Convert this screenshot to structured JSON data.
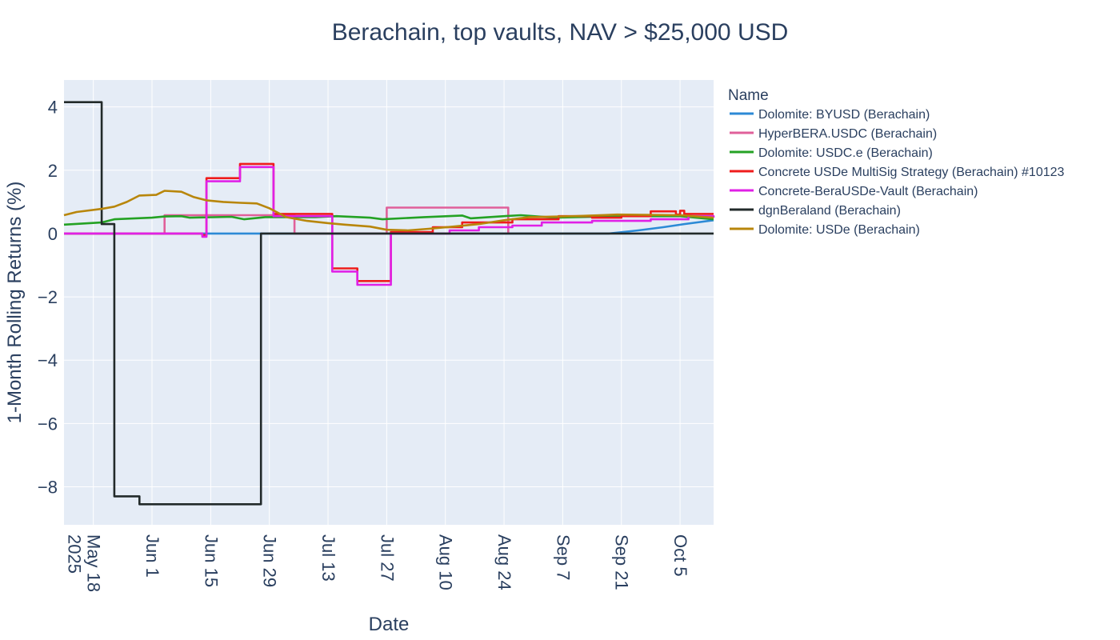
{
  "chart_data": {
    "type": "line",
    "title": "Berachain, top vaults, NAV > $25,000 USD",
    "xlabel": "Date",
    "ylabel": "1-Month Rolling Returns (%)",
    "xlim": [
      "2025-05-11",
      "2025-10-13"
    ],
    "ylim": [
      -9.2,
      4.85
    ],
    "y_ticks": [
      4,
      2,
      0,
      -2,
      -4,
      -6,
      -8
    ],
    "y_tick_labels": [
      "4",
      "2",
      "0",
      "−2",
      "−4",
      "−6",
      "−8"
    ],
    "x_ticks": [
      {
        "date": "2025-05-18",
        "label": "May 18",
        "label2": "2025"
      },
      {
        "date": "2025-06-01",
        "label": "Jun 1"
      },
      {
        "date": "2025-06-15",
        "label": "Jun 15"
      },
      {
        "date": "2025-06-29",
        "label": "Jun 29"
      },
      {
        "date": "2025-07-13",
        "label": "Jul 13"
      },
      {
        "date": "2025-07-27",
        "label": "Jul 27"
      },
      {
        "date": "2025-08-10",
        "label": "Aug 10"
      },
      {
        "date": "2025-08-24",
        "label": "Aug 24"
      },
      {
        "date": "2025-09-07",
        "label": "Sep 7"
      },
      {
        "date": "2025-09-21",
        "label": "Sep 21"
      },
      {
        "date": "2025-10-05",
        "label": "Oct 5"
      }
    ],
    "legend_title": "Name",
    "legend_position": "right",
    "grid": true,
    "series": [
      {
        "name": "Dolomite: BYUSD (Berachain)",
        "color": "#2c8ad6",
        "step": false,
        "points": [
          [
            "2025-05-11",
            0
          ],
          [
            "2025-09-18",
            0
          ],
          [
            "2025-09-25",
            0.1
          ],
          [
            "2025-10-01",
            0.2
          ],
          [
            "2025-10-06",
            0.3
          ],
          [
            "2025-10-13",
            0.42
          ]
        ]
      },
      {
        "name": "HyperBERA.USDC (Berachain)",
        "color": "#e0609a",
        "step": true,
        "points": [
          [
            "2025-06-03",
            0
          ],
          [
            "2025-06-04",
            0.58
          ],
          [
            "2025-07-04",
            0.58
          ],
          [
            "2025-07-05",
            0
          ],
          [
            "2025-07-26",
            0
          ],
          [
            "2025-07-27",
            0.82
          ],
          [
            "2025-08-24",
            0.82
          ],
          [
            "2025-08-25",
            0
          ]
        ]
      },
      {
        "name": "Dolomite: USDC.e (Berachain)",
        "color": "#24a224",
        "step": false,
        "points": [
          [
            "2025-05-11",
            0.28
          ],
          [
            "2025-05-20",
            0.35
          ],
          [
            "2025-05-23",
            0.45
          ],
          [
            "2025-06-01",
            0.5
          ],
          [
            "2025-06-04",
            0.54
          ],
          [
            "2025-06-08",
            0.55
          ],
          [
            "2025-06-10",
            0.5
          ],
          [
            "2025-06-20",
            0.53
          ],
          [
            "2025-06-23",
            0.45
          ],
          [
            "2025-06-28",
            0.52
          ],
          [
            "2025-07-10",
            0.52
          ],
          [
            "2025-07-15",
            0.55
          ],
          [
            "2025-07-23",
            0.5
          ],
          [
            "2025-07-26",
            0.45
          ],
          [
            "2025-08-05",
            0.52
          ],
          [
            "2025-08-14",
            0.57
          ],
          [
            "2025-08-16",
            0.48
          ],
          [
            "2025-08-24",
            0.55
          ],
          [
            "2025-08-28",
            0.58
          ],
          [
            "2025-09-05",
            0.5
          ],
          [
            "2025-09-20",
            0.55
          ],
          [
            "2025-10-05",
            0.55
          ],
          [
            "2025-10-13",
            0.45
          ]
        ]
      },
      {
        "name": "Concrete USDe MultiSig Strategy (Berachain) #10123",
        "color": "#ef1c1c",
        "step": true,
        "points": [
          [
            "2025-05-11",
            0
          ],
          [
            "2025-06-13",
            -0.05
          ],
          [
            "2025-06-14",
            1.75
          ],
          [
            "2025-06-21",
            1.75
          ],
          [
            "2025-06-22",
            2.2
          ],
          [
            "2025-06-29",
            2.2
          ],
          [
            "2025-06-30",
            0.62
          ],
          [
            "2025-07-13",
            0.62
          ],
          [
            "2025-07-14",
            -1.1
          ],
          [
            "2025-07-19",
            -1.1
          ],
          [
            "2025-07-20",
            -1.5
          ],
          [
            "2025-07-27",
            -1.5
          ],
          [
            "2025-07-28",
            0.05
          ],
          [
            "2025-08-06",
            0.05
          ],
          [
            "2025-08-07",
            0.2
          ],
          [
            "2025-08-13",
            0.2
          ],
          [
            "2025-08-14",
            0.35
          ],
          [
            "2025-08-25",
            0.35
          ],
          [
            "2025-08-26",
            0.45
          ],
          [
            "2025-09-05",
            0.45
          ],
          [
            "2025-09-06",
            0.55
          ],
          [
            "2025-09-13",
            0.55
          ],
          [
            "2025-09-14",
            0.5
          ],
          [
            "2025-09-20",
            0.5
          ],
          [
            "2025-09-21",
            0.55
          ],
          [
            "2025-09-27",
            0.55
          ],
          [
            "2025-09-28",
            0.7
          ],
          [
            "2025-10-04",
            0.6
          ],
          [
            "2025-10-05",
            0.72
          ],
          [
            "2025-10-06",
            0.62
          ],
          [
            "2025-10-13",
            0.62
          ]
        ]
      },
      {
        "name": "Concrete-BeraUSDe-Vault (Berachain)",
        "color": "#e020e6",
        "step": true,
        "points": [
          [
            "2025-05-11",
            0
          ],
          [
            "2025-06-13",
            -0.1
          ],
          [
            "2025-06-14",
            1.65
          ],
          [
            "2025-06-21",
            1.65
          ],
          [
            "2025-06-22",
            2.1
          ],
          [
            "2025-06-29",
            2.1
          ],
          [
            "2025-06-30",
            0.55
          ],
          [
            "2025-07-13",
            0.55
          ],
          [
            "2025-07-14",
            -1.2
          ],
          [
            "2025-07-19",
            -1.2
          ],
          [
            "2025-07-20",
            -1.62
          ],
          [
            "2025-07-27",
            -1.62
          ],
          [
            "2025-07-28",
            0
          ],
          [
            "2025-08-10",
            0
          ],
          [
            "2025-08-11",
            0.1
          ],
          [
            "2025-08-17",
            0.1
          ],
          [
            "2025-08-18",
            0.2
          ],
          [
            "2025-08-25",
            0.2
          ],
          [
            "2025-08-26",
            0.25
          ],
          [
            "2025-09-01",
            0.25
          ],
          [
            "2025-09-02",
            0.35
          ],
          [
            "2025-09-13",
            0.35
          ],
          [
            "2025-09-14",
            0.4
          ],
          [
            "2025-09-27",
            0.4
          ],
          [
            "2025-09-28",
            0.45
          ],
          [
            "2025-10-06",
            0.45
          ],
          [
            "2025-10-07",
            0.55
          ],
          [
            "2025-10-13",
            0.5
          ]
        ]
      },
      {
        "name": "dgnBeraland (Berachain)",
        "color": "#222a2a",
        "step": true,
        "points": [
          [
            "2025-05-11",
            4.15
          ],
          [
            "2025-05-19",
            4.15
          ],
          [
            "2025-05-20",
            0.3
          ],
          [
            "2025-05-22",
            0.3
          ],
          [
            "2025-05-23",
            -8.3
          ],
          [
            "2025-05-28",
            -8.3
          ],
          [
            "2025-05-29",
            -8.55
          ],
          [
            "2025-06-26",
            -8.55
          ],
          [
            "2025-06-27",
            0
          ],
          [
            "2025-10-13",
            0
          ]
        ]
      },
      {
        "name": "Dolomite: USDe (Berachain)",
        "color": "#b8860b",
        "step": false,
        "points": [
          [
            "2025-05-11",
            0.58
          ],
          [
            "2025-05-14",
            0.68
          ],
          [
            "2025-05-20",
            0.78
          ],
          [
            "2025-05-23",
            0.85
          ],
          [
            "2025-05-26",
            1.0
          ],
          [
            "2025-05-29",
            1.2
          ],
          [
            "2025-06-02",
            1.22
          ],
          [
            "2025-06-04",
            1.35
          ],
          [
            "2025-06-08",
            1.32
          ],
          [
            "2025-06-11",
            1.15
          ],
          [
            "2025-06-14",
            1.05
          ],
          [
            "2025-06-18",
            1.0
          ],
          [
            "2025-06-22",
            0.97
          ],
          [
            "2025-06-26",
            0.95
          ],
          [
            "2025-06-29",
            0.8
          ],
          [
            "2025-07-03",
            0.52
          ],
          [
            "2025-07-08",
            0.4
          ],
          [
            "2025-07-13",
            0.33
          ],
          [
            "2025-07-17",
            0.28
          ],
          [
            "2025-07-23",
            0.22
          ],
          [
            "2025-07-27",
            0.12
          ],
          [
            "2025-08-01",
            0.1
          ],
          [
            "2025-08-06",
            0.15
          ],
          [
            "2025-08-12",
            0.22
          ],
          [
            "2025-08-18",
            0.3
          ],
          [
            "2025-08-24",
            0.42
          ],
          [
            "2025-08-30",
            0.52
          ],
          [
            "2025-09-10",
            0.55
          ],
          [
            "2025-09-20",
            0.6
          ],
          [
            "2025-10-05",
            0.58
          ],
          [
            "2025-10-13",
            0.5
          ]
        ]
      }
    ]
  }
}
